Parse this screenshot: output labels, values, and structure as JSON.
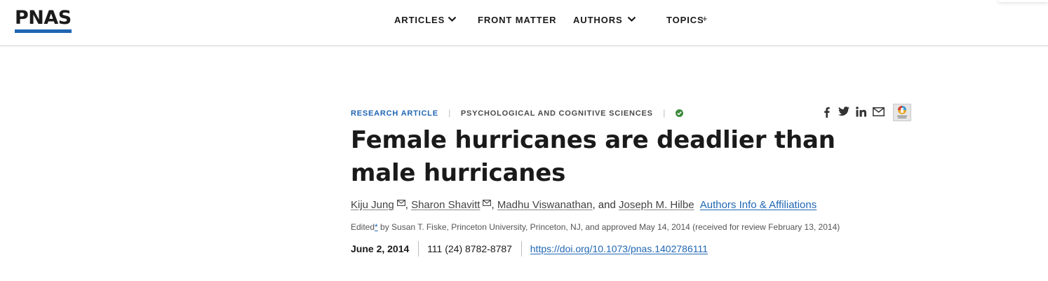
{
  "header": {
    "logo": "PNAS",
    "nav": [
      {
        "label": "ARTICLES",
        "has_dropdown": true
      },
      {
        "label": "FRONT MATTER",
        "has_dropdown": false
      },
      {
        "label": "AUTHORS",
        "has_dropdown": true
      },
      {
        "label": "TOPICS",
        "has_expand": true,
        "expand_symbol": "+"
      }
    ]
  },
  "article": {
    "type_label": "RESEARCH ARTICLE",
    "section_label": "PSYCHOLOGICAL AND COGNITIVE SCIENCES",
    "separator": "|",
    "access_icon": "check-circle-icon",
    "title": "Female hurricanes are deadlier than male hurricanes",
    "authors": [
      {
        "name": "Kiju Jung",
        "has_email": true
      },
      {
        "name": "Sharon Shavitt",
        "has_email": true
      },
      {
        "name": "Madhu Viswanathan",
        "has_email": false
      },
      {
        "name": "Joseph M. Hilbe",
        "has_email": false
      }
    ],
    "author_sep": ", ",
    "author_last_sep": ", and ",
    "affiliations_link": "Authors Info & Affiliations",
    "edited_prefix": "Edited",
    "edited_star": "*",
    "edited_text": " by Susan T. Fiske, Princeton University, Princeton, NJ, and approved May 14, 2014 (received for review February 13, 2014)",
    "pub_date": "June 2, 2014",
    "citation": "111 (24) 8782-8787",
    "doi": "https://doi.org/10.1073/pnas.1402786111"
  },
  "share": {
    "icons": [
      "facebook-icon",
      "twitter-icon",
      "linkedin-icon",
      "email-icon",
      "crossmark-icon"
    ]
  },
  "colors": {
    "accent": "#1f66b3",
    "access_green": "#3d8b3d",
    "text": "#1a1a1a"
  }
}
